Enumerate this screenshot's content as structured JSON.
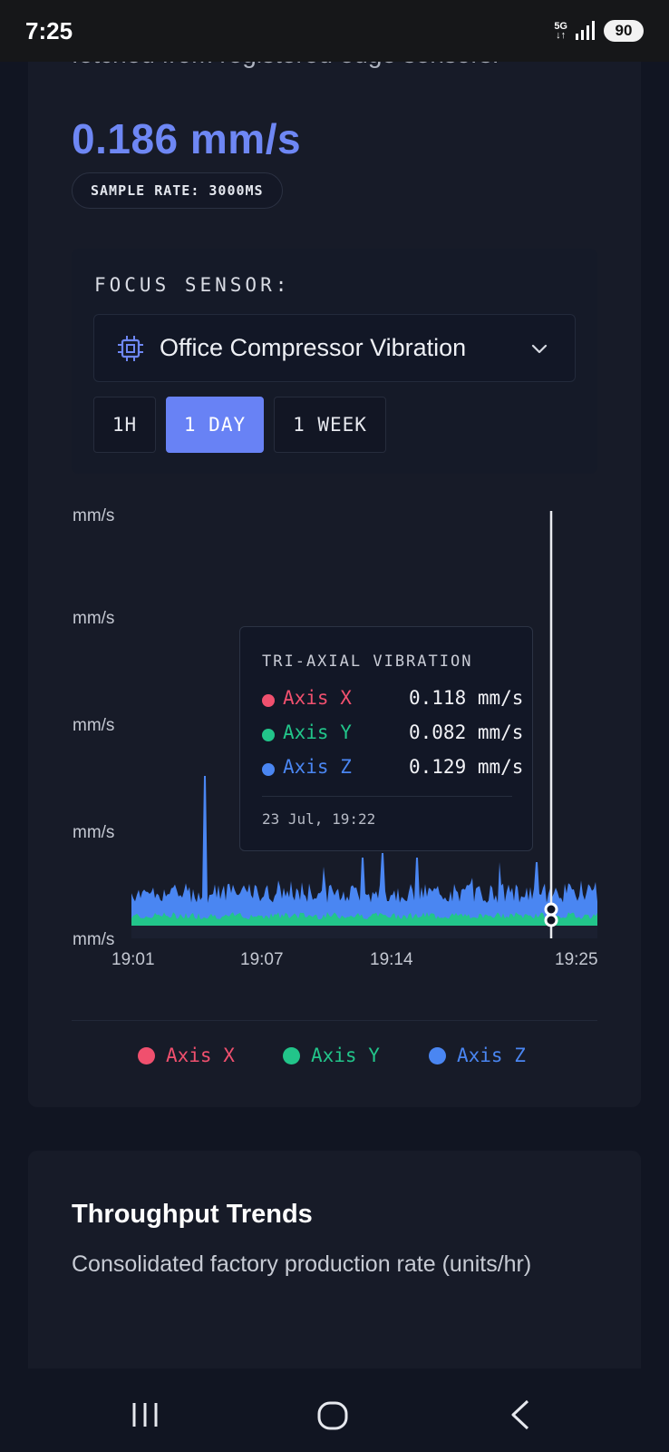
{
  "status_bar": {
    "time": "7:25",
    "network": "5G",
    "battery": "90"
  },
  "sensor_card": {
    "cut_description": "fetched from registered edge sensors.",
    "current_value": "0.186 mm/s",
    "sample_rate": "SAMPLE RATE: 3000MS",
    "focus_label": "FOCUS SENSOR:",
    "selected_sensor": "Office Compressor Vibration",
    "ranges": [
      {
        "label": "1H",
        "active": false
      },
      {
        "label": "1 DAY",
        "active": true
      },
      {
        "label": "1 WEEK",
        "active": false
      }
    ]
  },
  "chart_data": {
    "type": "area",
    "title": "",
    "y_tick_labels": [
      "mm/s",
      "mm/s",
      "mm/s",
      "mm/s",
      "mm/s"
    ],
    "x_tick_labels": [
      "19:01",
      "19:07",
      "19:14",
      "19:25"
    ],
    "series": [
      {
        "name": "Axis X",
        "color": "#f0506e"
      },
      {
        "name": "Axis Y",
        "color": "#22c58a"
      },
      {
        "name": "Axis Z",
        "color": "#4a86f2"
      }
    ],
    "tooltip": {
      "title": "TRI-AXIAL VIBRATION",
      "rows": [
        {
          "name": "Axis X",
          "value": "0.118 mm/s",
          "color": "#f0506e"
        },
        {
          "name": "Axis Y",
          "value": "0.082 mm/s",
          "color": "#22c58a"
        },
        {
          "name": "Axis Z",
          "value": "0.129 mm/s",
          "color": "#4a86f2"
        }
      ],
      "timestamp": "23 Jul, 19:22"
    },
    "legend": [
      "Axis X",
      "Axis Y",
      "Axis Z"
    ],
    "legend_position": "bottom"
  },
  "throughput_card": {
    "title": "Throughput Trends",
    "subtitle": "Consolidated factory production rate (units/hr)"
  },
  "colors": {
    "accent": "#6e87f4",
    "background": "#111522",
    "card": "#171b28"
  }
}
